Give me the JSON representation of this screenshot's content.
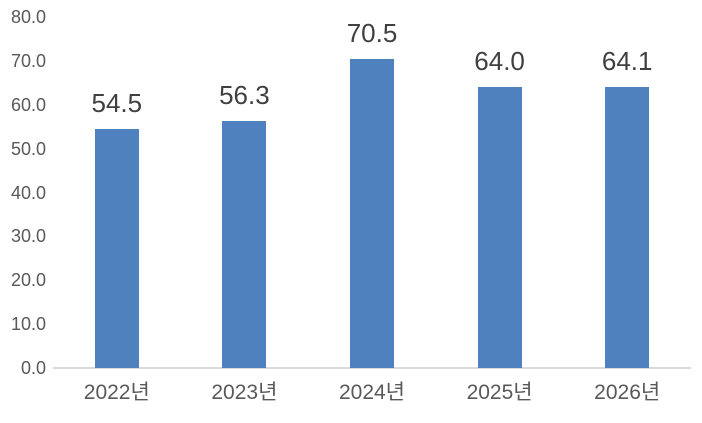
{
  "chart_data": {
    "type": "bar",
    "title": "",
    "xlabel": "",
    "ylabel": "",
    "categories": [
      "2022년",
      "2023년",
      "2024년",
      "2025년",
      "2026년"
    ],
    "values": [
      54.5,
      56.3,
      70.5,
      64.0,
      64.1
    ],
    "value_labels": [
      "54.5",
      "56.3",
      "70.5",
      "64.0",
      "64.1"
    ],
    "ylim": [
      0,
      80
    ],
    "ytick_labels": [
      "0.0",
      "10.0",
      "20.0",
      "30.0",
      "40.0",
      "50.0",
      "60.0",
      "70.0",
      "80.0"
    ],
    "grid": false,
    "legend": false,
    "colors": {
      "bar": "#4E81BD",
      "value_label_text": "#404040",
      "axis_tick_text": "#595959",
      "axis_line": "#D9D9D9"
    }
  }
}
